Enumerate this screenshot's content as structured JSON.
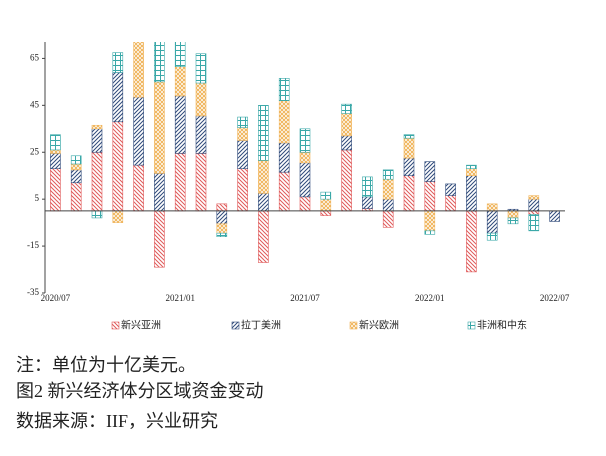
{
  "chart_data": {
    "type": "bar",
    "stacked": true,
    "note": "注：单位为十亿美元。",
    "title": "图2 新兴经济体分区域资金变动",
    "source": "数据来源：IIF，兴业研究",
    "categories": [
      "2020/07",
      null,
      null,
      null,
      null,
      null,
      "2021/01",
      null,
      null,
      null,
      null,
      null,
      "2021/07",
      null,
      null,
      null,
      null,
      null,
      "2022/01",
      null,
      null,
      null,
      null,
      null,
      "2022/07"
    ],
    "ylim": [
      -35,
      72
    ],
    "yticks": [
      -35,
      -15,
      5,
      25,
      45,
      65
    ],
    "grid": false,
    "legend": "bottom",
    "series": [
      {
        "name": "新兴亚洲",
        "color": "#e05a5a",
        "pattern": "diag-back",
        "values": [
          18,
          12,
          25,
          38,
          19.5,
          -24,
          24.5,
          24.5,
          3,
          18,
          -22,
          16.5,
          6,
          -2,
          26,
          1,
          -7,
          15,
          12.5,
          6.5,
          -26,
          0,
          0,
          -1.5,
          0
        ]
      },
      {
        "name": "拉丁美洲",
        "color": "#2f4a7a",
        "pattern": "diag-fwd",
        "values": [
          6.5,
          5.5,
          10,
          21,
          29,
          16,
          24.5,
          16,
          -5.5,
          12,
          7.5,
          12.5,
          14.5,
          0,
          6,
          5,
          5,
          7.5,
          8.5,
          5,
          15,
          -9.5,
          0.7,
          5,
          -4.5
        ]
      },
      {
        "name": "新兴欧洲",
        "color": "#f0b45a",
        "pattern": "cross",
        "values": [
          1.5,
          2.5,
          1.5,
          -5,
          26,
          39,
          12.5,
          14,
          -4,
          5.5,
          14,
          18,
          4.5,
          5,
          9.5,
          0,
          8.5,
          8.5,
          -8.5,
          0,
          3,
          3,
          -3,
          1.5,
          0
        ]
      },
      {
        "name": "非洲和中东",
        "color": "#3aa8a8",
        "pattern": "grid",
        "values": [
          6.5,
          3.5,
          -3,
          8.5,
          0,
          18,
          11,
          12.5,
          -1.5,
          4.5,
          23.5,
          9.5,
          10,
          3,
          4,
          8.5,
          4,
          1.5,
          -1.5,
          0,
          1.5,
          -3,
          -2.5,
          -7,
          0
        ]
      }
    ]
  }
}
